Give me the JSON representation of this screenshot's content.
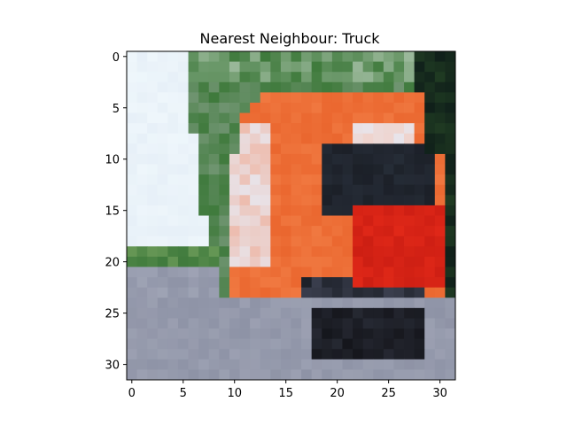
{
  "chart_data": {
    "type": "heatmap",
    "title": "Nearest Neighbour: Truck",
    "xlabel": "",
    "ylabel": "",
    "image_size": [
      32,
      32
    ],
    "xlim": [
      -0.5,
      31.5
    ],
    "ylim": [
      31.5,
      -0.5
    ],
    "xticks": [
      0,
      5,
      10,
      15,
      20,
      25,
      30
    ],
    "yticks": [
      0,
      5,
      10,
      15,
      20,
      25,
      30
    ],
    "xtick_labels": [
      "0",
      "5",
      "10",
      "15",
      "20",
      "25",
      "30"
    ],
    "ytick_labels": [
      "0",
      "5",
      "10",
      "15",
      "20",
      "25",
      "30"
    ],
    "grid": false,
    "colors": {
      "sky": "#eef6fb",
      "foliage": "#3f7a3c",
      "dark_foliage": "#1f3a22",
      "truck_orange": "#f07840",
      "truck_red": "#e02818",
      "cab_white": "#e8e4ea",
      "window_dark": "#1c2028",
      "wheel_dark": "#15161c",
      "road": "#8e93a6"
    }
  }
}
